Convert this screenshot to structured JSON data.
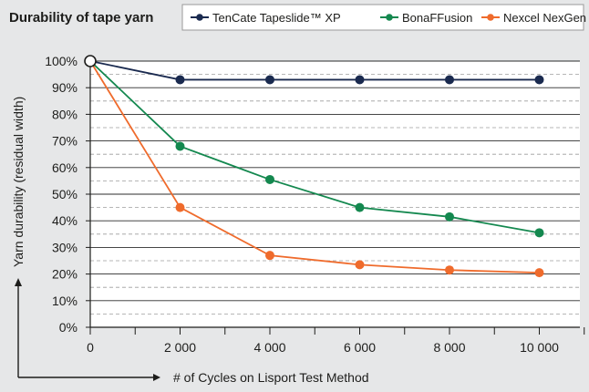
{
  "chart_data": {
    "type": "line",
    "title": "Durability of tape yarn",
    "xlabel": "# of Cycles on Lisport Test Method",
    "ylabel": "Yarn durability (residual width)",
    "x": [
      0,
      2000,
      4000,
      6000,
      8000,
      10000
    ],
    "x_tick_labels": [
      "0",
      "2 000",
      "4 000",
      "6 000",
      "8 000",
      "10 000"
    ],
    "y_tick_labels": [
      "0%",
      "10%",
      "20%",
      "30%",
      "40%",
      "50%",
      "60%",
      "70%",
      "80%",
      "90%",
      "100%"
    ],
    "xlim": [
      0,
      11000
    ],
    "ylim": [
      0,
      100
    ],
    "grid": true,
    "legend_position": "top",
    "series": [
      {
        "name": "TenCate Tapeslide™ XP",
        "color": "#1a2a4f",
        "values": [
          100,
          93,
          93,
          93,
          93,
          93
        ]
      },
      {
        "name": "BonaFFusion",
        "color": "#14884f",
        "values": [
          100,
          68,
          55.5,
          45,
          41.5,
          35.5
        ]
      },
      {
        "name": "Nexcel NexGen",
        "color": "#ef6b2c",
        "values": [
          100,
          45,
          27,
          23.5,
          21.5,
          20.5
        ]
      }
    ]
  }
}
